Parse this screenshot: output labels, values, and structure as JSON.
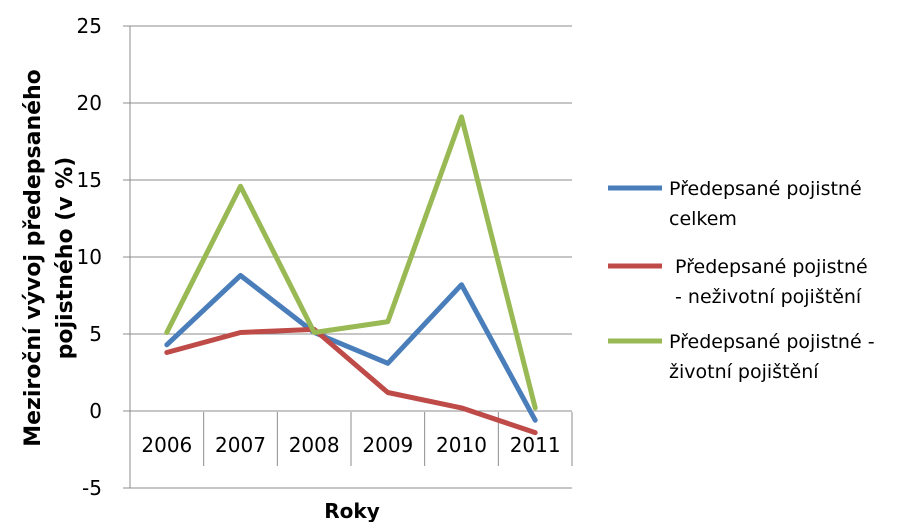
{
  "chart_data": {
    "type": "line",
    "xlabel": "Roky",
    "ylabel_lines": [
      "Meziroční vývoj předepsaného",
      "pojistného (v %)"
    ],
    "ylim": [
      -5,
      25
    ],
    "ytick_step": 5,
    "categories": [
      "2006",
      "2007",
      "2008",
      "2009",
      "2010",
      "2011"
    ],
    "grid": "horizontal",
    "legend_position": "right",
    "series": [
      {
        "name_lines": [
          "Předepsané pojistné",
          "celkem"
        ],
        "color": "#4a7ebb",
        "values": [
          4.3,
          8.8,
          5.1,
          3.1,
          8.2,
          -0.6
        ]
      },
      {
        "name_lines": [
          " Předepsané pojistné",
          " - neživotní pojištění"
        ],
        "color": "#be4b48",
        "values": [
          3.8,
          5.1,
          5.3,
          1.2,
          0.2,
          -1.4
        ]
      },
      {
        "name_lines": [
          "Předepsané pojistné -",
          "životní pojištění"
        ],
        "color": "#98b954",
        "values": [
          5.1,
          14.6,
          5.1,
          5.8,
          19.1,
          0.2
        ]
      }
    ]
  }
}
